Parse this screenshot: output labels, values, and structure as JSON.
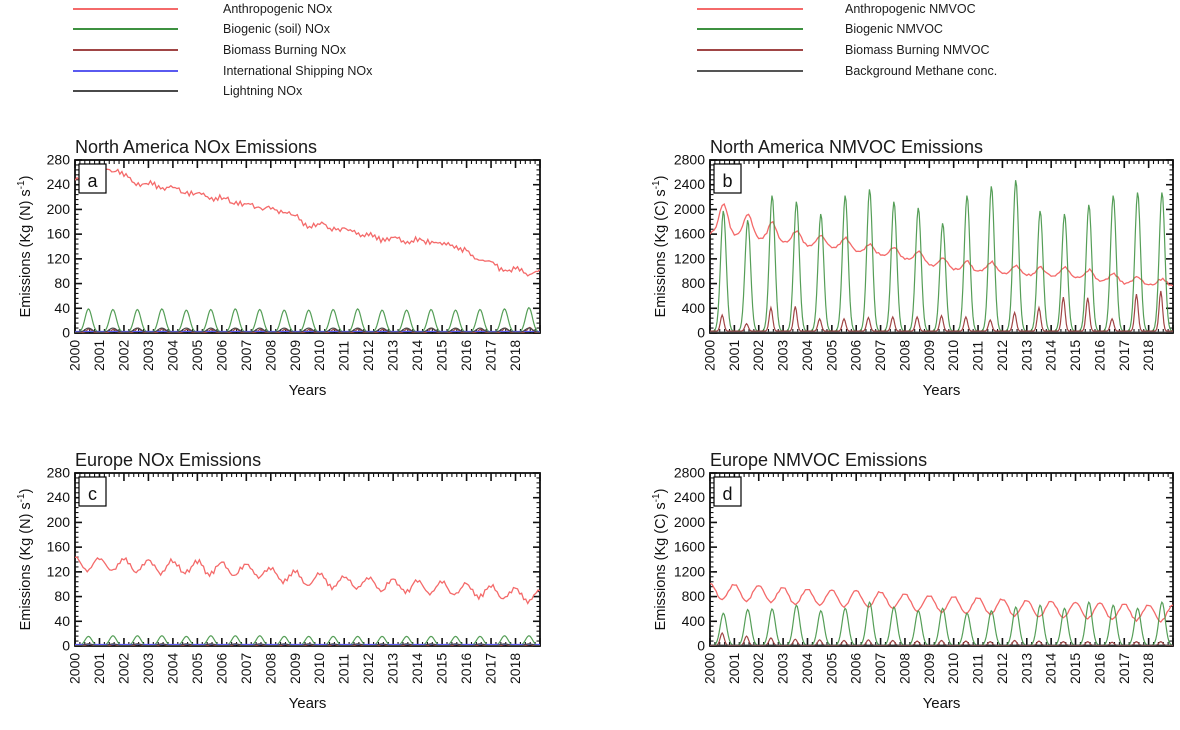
{
  "figure": {
    "background": "#ffffff"
  },
  "legends": {
    "nox": {
      "items": [
        {
          "label": "Anthropogenic NOx",
          "color": "#f46a6a"
        },
        {
          "label": "Biogenic (soil) NOx",
          "color": "#3d9140"
        },
        {
          "label": "Biomass Burning NOx",
          "color": "#a04545"
        },
        {
          "label": "International Shipping NOx",
          "color": "#5a5af0"
        },
        {
          "label": "Lightning NOx",
          "color": "#4a4a4a"
        }
      ]
    },
    "nmvoc": {
      "items": [
        {
          "label": "Anthropogenic NMVOC",
          "color": "#f46a6a"
        },
        {
          "label": "Biogenic NMVOC",
          "color": "#3d9140"
        },
        {
          "label": "Biomass Burning NMVOC",
          "color": "#a04545"
        },
        {
          "label": "Background Methane conc.",
          "color": "#555555"
        }
      ]
    }
  },
  "chart_data": [
    {
      "id": "a",
      "type": "line",
      "panel_label": "a",
      "title": "North America NOx Emissions",
      "xlabel": "Years",
      "ylabel_prefix": "Emissions (Kg (N) s",
      "ylabel_sup": "-1",
      "ylabel_suffix": ")",
      "xlim": [
        2000,
        2019
      ],
      "ylim": [
        0,
        280
      ],
      "ytick_step": 40,
      "ytick_minor": 8,
      "xtick_minor": 0.2,
      "x_tick_labels": [
        "2000",
        "2001",
        "2002",
        "2003",
        "2004",
        "2005",
        "2006",
        "2007",
        "2008",
        "2009",
        "2010",
        "2011",
        "2012",
        "2013",
        "2014",
        "2015",
        "2016",
        "2017",
        "2018"
      ],
      "series": [
        {
          "name": "Anthropogenic NOx",
          "color": "#f46a6a",
          "style": "trend",
          "annual": [
            248,
            265,
            243,
            237,
            229,
            221,
            212,
            205,
            197,
            176,
            171,
            163,
            153,
            151,
            148,
            140,
            122,
            103,
            99
          ],
          "seasonal": {
            "type": "cos",
            "amp": 3,
            "phase": 0.1
          },
          "noise": 3,
          "alt": 2,
          "seed": 11
        },
        {
          "name": "Biogenic (soil) NOx",
          "color": "#3d9140",
          "style": "peaks",
          "peaks": [
            38,
            37,
            37,
            38,
            36,
            37,
            38,
            37,
            36,
            36,
            37,
            38,
            36,
            36,
            37,
            36,
            37,
            38,
            40
          ],
          "center": 0.55,
          "sigma": 0.14,
          "base": 1,
          "seed": 12
        },
        {
          "name": "Biomass Burning NOx",
          "color": "#a04545",
          "style": "peaks",
          "peaks": [
            6,
            5,
            7,
            6,
            5,
            5,
            6,
            5,
            5,
            5,
            5,
            6,
            5,
            6,
            7,
            6,
            5,
            7,
            8
          ],
          "center": 0.58,
          "sigma": 0.09,
          "base": 1,
          "seed": 13
        },
        {
          "name": "International Shipping NOx",
          "color": "#5a5af0",
          "style": "flat",
          "value": 2.5
        },
        {
          "name": "Lightning NOx",
          "color": "#4a4a4a",
          "style": "peaks",
          "peaks": [
            7,
            7,
            7,
            7,
            7,
            7,
            7,
            7,
            7,
            7,
            7,
            7,
            7,
            7,
            7,
            7,
            7,
            7,
            7
          ],
          "center": 0.55,
          "sigma": 0.15,
          "base": 1,
          "seed": 14
        }
      ]
    },
    {
      "id": "b",
      "type": "line",
      "panel_label": "b",
      "title": "North America NMVOC Emissions",
      "xlabel": "Years",
      "ylabel_prefix": "Emissions (Kg (C) s",
      "ylabel_sup": "-1",
      "ylabel_suffix": ")",
      "xlim": [
        2000,
        2019
      ],
      "ylim": [
        0,
        2800
      ],
      "ytick_step": 400,
      "ytick_minor": 80,
      "xtick_minor": 0.2,
      "x_tick_labels": [
        "2000",
        "2001",
        "2002",
        "2003",
        "2004",
        "2005",
        "2006",
        "2007",
        "2008",
        "2009",
        "2010",
        "2011",
        "2012",
        "2013",
        "2014",
        "2015",
        "2016",
        "2017",
        "2018"
      ],
      "series": [
        {
          "name": "Anthropogenic NMVOC",
          "color": "#f46a6a",
          "style": "trend",
          "annual": [
            1620,
            1570,
            1500,
            1440,
            1400,
            1380,
            1290,
            1240,
            1170,
            1060,
            1000,
            990,
            950,
            930,
            920,
            880,
            830,
            790,
            760
          ],
          "seasonal": {
            "type": "gauss",
            "amp_annual": [
              480,
              360,
              290,
              220,
              180,
              160,
              150,
              150,
              150,
              150,
              160,
              160,
              150,
              140,
              140,
              140,
              130,
              120,
              120
            ],
            "center": 0.55,
            "sigma": 0.17
          },
          "noise": 14,
          "alt": 8,
          "seed": 21
        },
        {
          "name": "Biogenic NMVOC",
          "color": "#3d9140",
          "style": "peaks",
          "peaks": [
            1950,
            1800,
            2200,
            2100,
            1900,
            2200,
            2300,
            2100,
            2000,
            1750,
            2200,
            2350,
            2450,
            1950,
            1900,
            2050,
            2200,
            2250,
            2250
          ],
          "center": 0.55,
          "sigma": 0.115,
          "base": 30,
          "seed": 22
        },
        {
          "name": "Biomass Burning NMVOC",
          "color": "#a04545",
          "style": "peaks",
          "peaks": [
            260,
            120,
            380,
            400,
            200,
            200,
            220,
            230,
            230,
            250,
            230,
            180,
            300,
            380,
            550,
            540,
            200,
            600,
            650
          ],
          "center": 0.5,
          "sigma": 0.07,
          "base": 30,
          "seed": 23
        },
        {
          "name": "Background Methane conc.",
          "color": "#555555",
          "style": "flat",
          "value": 15
        }
      ]
    },
    {
      "id": "c",
      "type": "line",
      "panel_label": "c",
      "title": "Europe NOx Emissions",
      "xlabel": "Years",
      "ylabel_prefix": "Emissions (Kg (N) s",
      "ylabel_sup": "-1",
      "ylabel_suffix": ")",
      "xlim": [
        2000,
        2019
      ],
      "ylim": [
        0,
        280
      ],
      "ytick_step": 40,
      "ytick_minor": 8,
      "xtick_minor": 0.2,
      "x_tick_labels": [
        "2000",
        "2001",
        "2002",
        "2003",
        "2004",
        "2005",
        "2006",
        "2007",
        "2008",
        "2009",
        "2010",
        "2011",
        "2012",
        "2013",
        "2014",
        "2015",
        "2016",
        "2017",
        "2018"
      ],
      "series": [
        {
          "name": "Anthropogenic NOx",
          "color": "#f46a6a",
          "style": "trend",
          "annual": [
            133,
            132,
            130,
            129,
            128,
            126,
            124,
            121,
            114,
            108,
            104,
            103,
            99,
            97,
            95,
            92,
            89,
            86,
            81
          ],
          "seasonal": {
            "type": "cos",
            "amp": 10,
            "phase": 0.0
          },
          "noise": 2.5,
          "alt": 2,
          "seed": 31
        },
        {
          "name": "Biogenic (soil) NOx",
          "color": "#3d9140",
          "style": "peaks",
          "peaks": [
            15,
            16,
            16,
            16,
            15,
            16,
            16,
            16,
            15,
            15,
            15,
            15,
            15,
            15,
            15,
            15,
            15,
            16,
            16
          ],
          "center": 0.55,
          "sigma": 0.14,
          "base": 0.5,
          "seed": 32
        },
        {
          "name": "Biomass Burning NOx",
          "color": "#a04545",
          "style": "peaks",
          "peaks": [
            3,
            2,
            3,
            3,
            2,
            2,
            3,
            2,
            2,
            2,
            2,
            2,
            2,
            2,
            2,
            2,
            2,
            2,
            2
          ],
          "center": 0.58,
          "sigma": 0.09,
          "base": 0.5,
          "seed": 33
        },
        {
          "name": "International Shipping NOx",
          "color": "#5a5af0",
          "style": "flat",
          "value": 2.5
        },
        {
          "name": "Lightning NOx",
          "color": "#4a4a4a",
          "style": "peaks",
          "peaks": [
            3,
            3,
            3,
            3,
            3,
            3,
            3,
            3,
            3,
            3,
            3,
            3,
            3,
            3,
            3,
            3,
            3,
            3,
            3
          ],
          "center": 0.55,
          "sigma": 0.15,
          "base": 0.5,
          "seed": 34
        }
      ]
    },
    {
      "id": "d",
      "type": "line",
      "panel_label": "d",
      "title": "Europe NMVOC Emissions",
      "xlabel": "Years",
      "ylabel_prefix": "Emissions (Kg (C) s",
      "ylabel_sup": "-1",
      "ylabel_suffix": ")",
      "xlim": [
        2000,
        2019
      ],
      "ylim": [
        0,
        2800
      ],
      "ytick_step": 400,
      "ytick_minor": 80,
      "xtick_minor": 0.2,
      "x_tick_labels": [
        "2000",
        "2001",
        "2002",
        "2003",
        "2004",
        "2005",
        "2006",
        "2007",
        "2008",
        "2009",
        "2010",
        "2011",
        "2012",
        "2013",
        "2014",
        "2015",
        "2016",
        "2017",
        "2018"
      ],
      "series": [
        {
          "name": "Anthropogenic NMVOC",
          "color": "#f46a6a",
          "style": "trend",
          "annual": [
            880,
            860,
            840,
            800,
            790,
            770,
            760,
            740,
            700,
            680,
            660,
            640,
            620,
            600,
            590,
            570,
            560,
            545,
            530
          ],
          "seasonal": {
            "type": "cos",
            "amp": 130,
            "phase": 0.0
          },
          "noise": 10,
          "alt": 7,
          "seed": 41
        },
        {
          "name": "Biogenic NMVOC",
          "color": "#3d9140",
          "style": "peaks",
          "peaks": [
            520,
            580,
            590,
            650,
            560,
            600,
            700,
            620,
            560,
            600,
            520,
            560,
            620,
            650,
            600,
            700,
            650,
            600,
            700
          ],
          "center": 0.55,
          "sigma": 0.13,
          "base": 10,
          "seed": 42
        },
        {
          "name": "Biomass Burning NMVOC",
          "color": "#a04545",
          "style": "peaks",
          "peaks": [
            200,
            150,
            120,
            100,
            90,
            80,
            90,
            80,
            70,
            80,
            70,
            60,
            80,
            70,
            60,
            60,
            50,
            60,
            60
          ],
          "center": 0.5,
          "sigma": 0.08,
          "base": 10,
          "seed": 43
        },
        {
          "name": "Background Methane conc.",
          "color": "#555555",
          "style": "flat",
          "value": 15
        }
      ]
    }
  ]
}
